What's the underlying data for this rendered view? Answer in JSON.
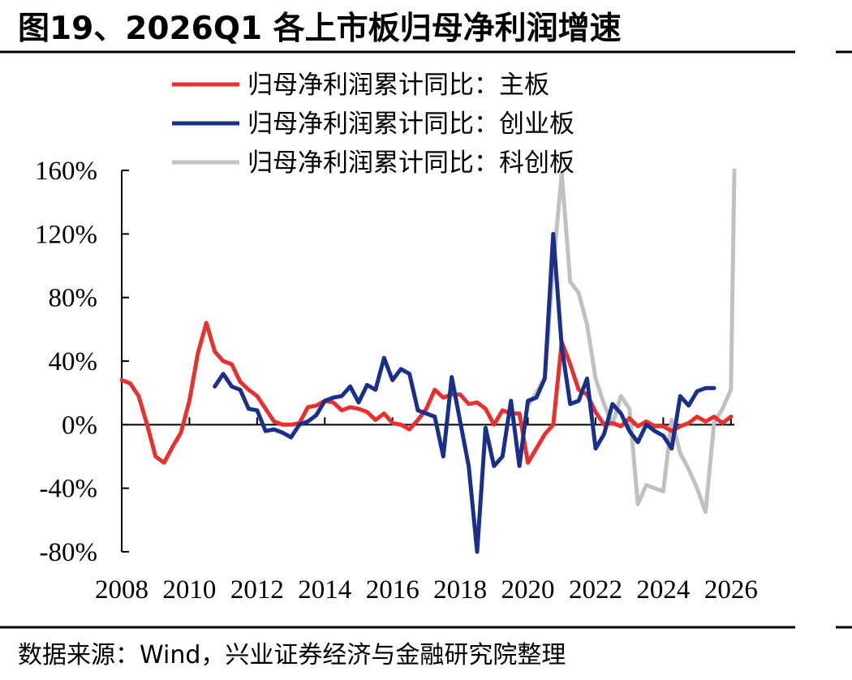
{
  "title": "图19、2026Q1 各上市板归母净利润增速",
  "source": "数据来源：Wind，兴业证券经济与金融研究院整理",
  "chart_data": {
    "type": "line",
    "title": "图19、2026Q1 各上市板归母净利润增速",
    "xlabel": "",
    "ylabel": "",
    "xlim": [
      2008,
      2026.1
    ],
    "ylim": [
      -80,
      160
    ],
    "y_ticks": [
      {
        "value": -80,
        "label": "-80%"
      },
      {
        "value": -40,
        "label": "-40%"
      },
      {
        "value": 0,
        "label": "0%"
      },
      {
        "value": 40,
        "label": "40%"
      },
      {
        "value": 80,
        "label": "80%"
      },
      {
        "value": 120,
        "label": "120%"
      },
      {
        "value": 160,
        "label": "160%"
      }
    ],
    "x_ticks": [
      {
        "value": 2008,
        "label": "2008"
      },
      {
        "value": 2010,
        "label": "2010"
      },
      {
        "value": 2012,
        "label": "2012"
      },
      {
        "value": 2014,
        "label": "2014"
      },
      {
        "value": 2016,
        "label": "2016"
      },
      {
        "value": 2018,
        "label": "2018"
      },
      {
        "value": 2020,
        "label": "2020"
      },
      {
        "value": 2022,
        "label": "2022"
      },
      {
        "value": 2024,
        "label": "2024"
      },
      {
        "value": 2026,
        "label": "2026"
      }
    ],
    "legend_position": "top",
    "series": [
      {
        "name": "归母净利润累计同比：主板",
        "color": "#e8302e",
        "points": [
          [
            2008.0,
            28
          ],
          [
            2008.25,
            26
          ],
          [
            2008.5,
            18
          ],
          [
            2008.75,
            0
          ],
          [
            2009.0,
            -20
          ],
          [
            2009.25,
            -24
          ],
          [
            2009.5,
            -14
          ],
          [
            2009.75,
            -5
          ],
          [
            2010.0,
            15
          ],
          [
            2010.25,
            45
          ],
          [
            2010.5,
            64
          ],
          [
            2010.75,
            46
          ],
          [
            2011.0,
            40
          ],
          [
            2011.25,
            38
          ],
          [
            2011.5,
            27
          ],
          [
            2011.75,
            22
          ],
          [
            2012.0,
            18
          ],
          [
            2012.25,
            10
          ],
          [
            2012.5,
            2
          ],
          [
            2012.75,
            0
          ],
          [
            2013.0,
            0
          ],
          [
            2013.25,
            1
          ],
          [
            2013.5,
            11
          ],
          [
            2013.75,
            12
          ],
          [
            2014.0,
            15
          ],
          [
            2014.25,
            14
          ],
          [
            2014.5,
            9
          ],
          [
            2014.75,
            11
          ],
          [
            2015.0,
            10
          ],
          [
            2015.25,
            8
          ],
          [
            2015.5,
            3
          ],
          [
            2015.75,
            7
          ],
          [
            2016.0,
            1
          ],
          [
            2016.25,
            0
          ],
          [
            2016.5,
            -3
          ],
          [
            2016.75,
            3
          ],
          [
            2017.0,
            10
          ],
          [
            2017.25,
            22
          ],
          [
            2017.5,
            17
          ],
          [
            2017.75,
            19
          ],
          [
            2018.0,
            19
          ],
          [
            2018.25,
            13
          ],
          [
            2018.5,
            14
          ],
          [
            2018.75,
            10
          ],
          [
            2019.0,
            0
          ],
          [
            2019.25,
            9
          ],
          [
            2019.5,
            7
          ],
          [
            2019.75,
            7
          ],
          [
            2020.0,
            -24
          ],
          [
            2020.25,
            -15
          ],
          [
            2020.5,
            -6
          ],
          [
            2020.75,
            0
          ],
          [
            2021.0,
            52
          ],
          [
            2021.25,
            38
          ],
          [
            2021.5,
            22
          ],
          [
            2021.75,
            19
          ],
          [
            2022.0,
            8
          ],
          [
            2022.25,
            0
          ],
          [
            2022.5,
            1
          ],
          [
            2022.75,
            -1
          ],
          [
            2023.0,
            4
          ],
          [
            2023.25,
            -1
          ],
          [
            2023.5,
            2
          ],
          [
            2023.75,
            -1
          ],
          [
            2024.0,
            -1
          ],
          [
            2024.25,
            -4
          ],
          [
            2024.5,
            -1
          ],
          [
            2024.75,
            1
          ],
          [
            2025.0,
            5
          ],
          [
            2025.25,
            2
          ],
          [
            2025.5,
            5
          ],
          [
            2025.75,
            1
          ],
          [
            2026.0,
            5
          ]
        ]
      },
      {
        "name": "归母净利润累计同比：创业板",
        "color": "#1a2f8a",
        "points": [
          [
            2010.75,
            24
          ],
          [
            2011.0,
            32
          ],
          [
            2011.25,
            24
          ],
          [
            2011.5,
            22
          ],
          [
            2011.75,
            10
          ],
          [
            2012.0,
            9
          ],
          [
            2012.25,
            -4
          ],
          [
            2012.5,
            -3
          ],
          [
            2012.75,
            -5
          ],
          [
            2013.0,
            -8
          ],
          [
            2013.25,
            0
          ],
          [
            2013.5,
            2
          ],
          [
            2013.75,
            6
          ],
          [
            2014.0,
            15
          ],
          [
            2014.25,
            17
          ],
          [
            2014.5,
            18
          ],
          [
            2014.75,
            24
          ],
          [
            2015.0,
            14
          ],
          [
            2015.25,
            25
          ],
          [
            2015.5,
            22
          ],
          [
            2015.75,
            42
          ],
          [
            2016.0,
            28
          ],
          [
            2016.25,
            35
          ],
          [
            2016.5,
            32
          ],
          [
            2016.75,
            9
          ],
          [
            2017.0,
            7
          ],
          [
            2017.25,
            5
          ],
          [
            2017.5,
            -20
          ],
          [
            2017.75,
            30
          ],
          [
            2018.0,
            2
          ],
          [
            2018.25,
            -26
          ],
          [
            2018.5,
            -80
          ],
          [
            2018.75,
            -2
          ],
          [
            2019.0,
            -26
          ],
          [
            2019.25,
            -20
          ],
          [
            2019.5,
            15
          ],
          [
            2019.75,
            -26
          ],
          [
            2020.0,
            15
          ],
          [
            2020.25,
            17
          ],
          [
            2020.5,
            29
          ],
          [
            2020.75,
            120
          ],
          [
            2021.0,
            49
          ],
          [
            2021.25,
            13
          ],
          [
            2021.5,
            15
          ],
          [
            2021.75,
            29
          ],
          [
            2022.0,
            -15
          ],
          [
            2022.25,
            -6
          ],
          [
            2022.5,
            13
          ],
          [
            2022.75,
            7
          ],
          [
            2023.0,
            -4
          ],
          [
            2023.25,
            -11
          ],
          [
            2023.5,
            0
          ],
          [
            2023.75,
            -4
          ],
          [
            2024.0,
            -7
          ],
          [
            2024.25,
            -15
          ],
          [
            2024.5,
            18
          ],
          [
            2024.75,
            12
          ],
          [
            2025.0,
            21
          ],
          [
            2025.25,
            23
          ],
          [
            2025.5,
            23
          ]
        ]
      },
      {
        "name": "归母净利润累计同比：科创板",
        "color": "#c0c0c0",
        "points": [
          [
            2020.0,
            12
          ],
          [
            2020.25,
            20
          ],
          [
            2020.5,
            30
          ],
          [
            2020.75,
            100
          ],
          [
            2021.0,
            158
          ],
          [
            2021.25,
            90
          ],
          [
            2021.5,
            83
          ],
          [
            2021.75,
            63
          ],
          [
            2022.0,
            29
          ],
          [
            2022.25,
            13
          ],
          [
            2022.5,
            0
          ],
          [
            2022.75,
            18
          ],
          [
            2023.0,
            10
          ],
          [
            2023.25,
            -50
          ],
          [
            2023.5,
            -38
          ],
          [
            2023.75,
            -40
          ],
          [
            2024.0,
            -42
          ],
          [
            2024.25,
            3
          ],
          [
            2024.5,
            -18
          ],
          [
            2024.75,
            -28
          ],
          [
            2025.0,
            -40
          ],
          [
            2025.25,
            -55
          ],
          [
            2025.5,
            1
          ],
          [
            2025.75,
            10
          ],
          [
            2026.0,
            22
          ],
          [
            2026.1,
            160
          ]
        ]
      }
    ]
  }
}
